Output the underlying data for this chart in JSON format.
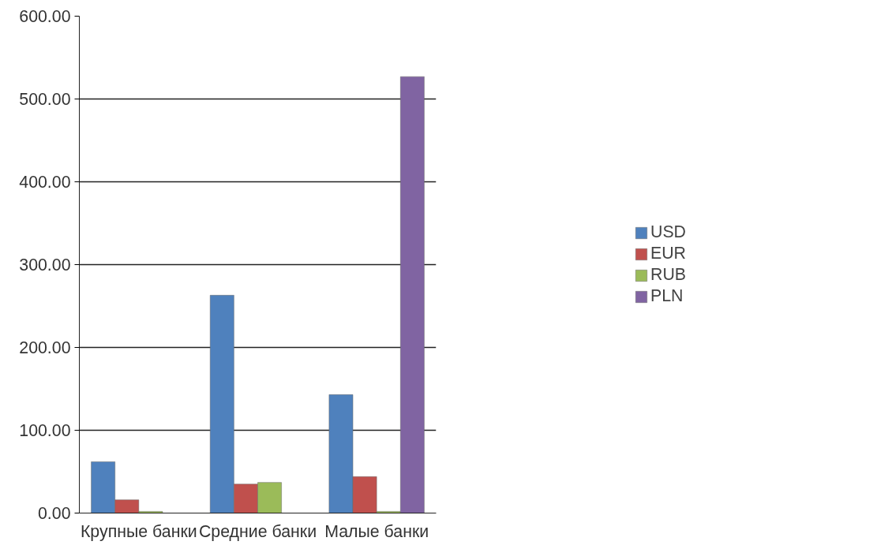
{
  "chart_data": {
    "type": "bar",
    "categories": [
      "Крупные банки",
      "Средние банки",
      "Малые банки"
    ],
    "series": [
      {
        "name": "USD",
        "color": "#4f81bd",
        "values": [
          62,
          263,
          143
        ]
      },
      {
        "name": "EUR",
        "color": "#c0504d",
        "values": [
          16,
          35,
          44
        ]
      },
      {
        "name": "RUB",
        "color": "#9bbb59",
        "values": [
          2,
          37,
          2
        ]
      },
      {
        "name": "PLN",
        "color": "#8064a2",
        "values": [
          null,
          null,
          527
        ]
      }
    ],
    "ylim": [
      0,
      600
    ],
    "yticks": [
      {
        "value": 0,
        "label": "0.00"
      },
      {
        "value": 100,
        "label": "100.00"
      },
      {
        "value": 200,
        "label": "200.00"
      },
      {
        "value": 300,
        "label": "300.00"
      },
      {
        "value": 400,
        "label": "400.00"
      },
      {
        "value": 500,
        "label": "500.00"
      },
      {
        "value": 600,
        "label": "600.00"
      }
    ],
    "grid": "y",
    "legend": "right"
  }
}
